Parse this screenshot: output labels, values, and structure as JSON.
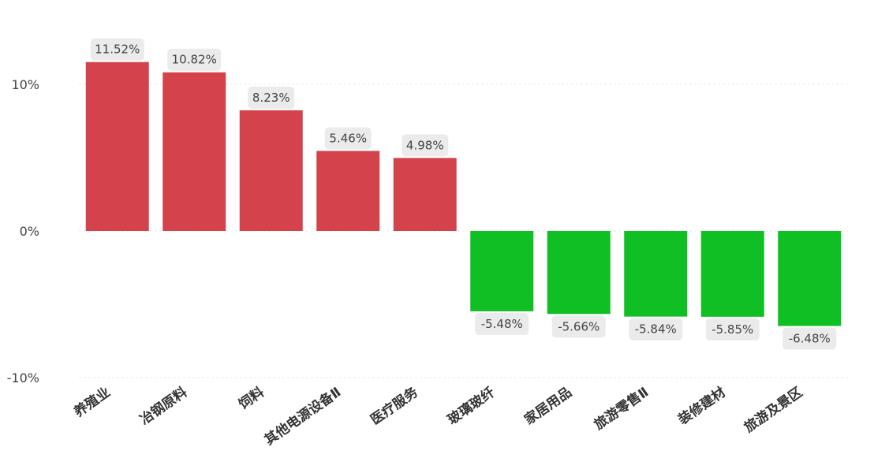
{
  "chart_data": {
    "type": "bar",
    "title": "",
    "xlabel": "",
    "ylabel": "",
    "categories": [
      "养殖业",
      "冶钢原料",
      "饲料",
      "其他电源设备Ⅱ",
      "医疗服务",
      "玻璃玻纤",
      "家居用品",
      "旅游零售Ⅱ",
      "装修建材",
      "旅游及景区"
    ],
    "values": [
      11.52,
      10.82,
      8.23,
      5.46,
      4.98,
      -5.48,
      -5.66,
      -5.84,
      -5.85,
      -6.48
    ],
    "value_labels": [
      "11.52%",
      "10.82%",
      "8.23%",
      "5.46%",
      "4.98%",
      "-5.48%",
      "-5.66%",
      "-5.84%",
      "-5.85%",
      "-6.48%"
    ],
    "y_ticks": [
      10,
      0,
      -10
    ],
    "y_tick_labels": [
      "10%",
      "0%",
      "-10%"
    ],
    "ylim": [
      -10,
      12
    ],
    "grid": true,
    "legend": "none",
    "colors": {
      "positive": "#d4434b",
      "negative": "#0fbf24"
    }
  }
}
